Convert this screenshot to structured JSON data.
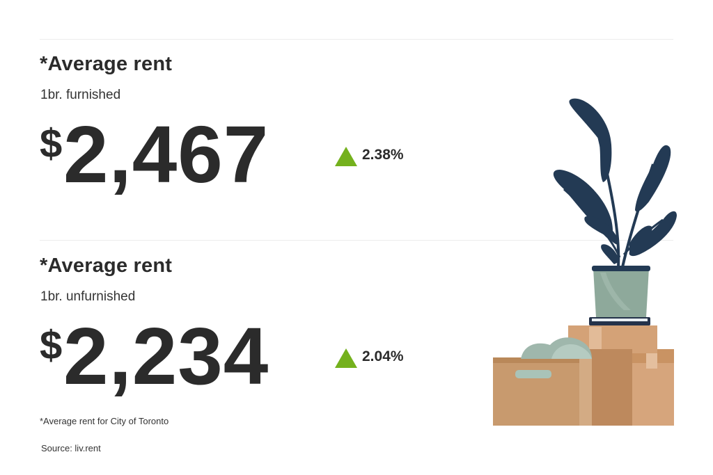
{
  "sections": [
    {
      "heading": "*Average rent",
      "subheading": "1br. furnished",
      "currency": "$",
      "amount": "2,467",
      "change": "2.38%",
      "change_direction": "up"
    },
    {
      "heading": "*Average rent",
      "subheading": "1br. unfurnished",
      "currency": "$",
      "amount": "2,234",
      "change": "2.04%",
      "change_direction": "up"
    }
  ],
  "footnote": "*Average rent for City of Toronto",
  "source": "Source: liv.rent",
  "colors": {
    "text": "#2b2b2b",
    "increase": "#74b11d",
    "leaf": "#233a54",
    "pot": "#8ea99b",
    "box": "#c89a6e"
  },
  "illustration": {
    "icon": "plant-on-moving-boxes-icon"
  }
}
